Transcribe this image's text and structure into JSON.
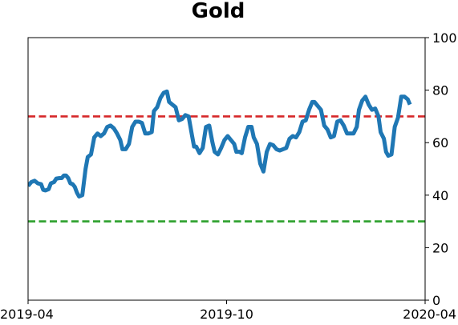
{
  "chart_data": {
    "type": "line",
    "title": "Gold",
    "xlabel": "",
    "ylabel": "",
    "xlim": [
      "2019-04-01",
      "2020-04-01"
    ],
    "ylim": [
      0,
      100
    ],
    "x_ticks": [
      {
        "date": "2019-04-01",
        "label": "2019-04"
      },
      {
        "date": "2019-10-01",
        "label": "2019-10"
      },
      {
        "date": "2020-04-01",
        "label": "2020-04"
      }
    ],
    "y_ticks": [
      0,
      20,
      40,
      60,
      80,
      100
    ],
    "y_axis_side": "right",
    "grid": false,
    "legend": "none",
    "reference_lines": [
      {
        "y": 70,
        "color": "#d62728",
        "style": "dashed"
      },
      {
        "y": 30,
        "color": "#2ca02c",
        "style": "dashed"
      }
    ],
    "series": [
      {
        "color": "#1f77b4",
        "points": [
          [
            "2019-04-01",
            43.5
          ],
          [
            "2019-04-04",
            45
          ],
          [
            "2019-04-07",
            45.5
          ],
          [
            "2019-04-10",
            44.5
          ],
          [
            "2019-04-13",
            44.2
          ],
          [
            "2019-04-15",
            42
          ],
          [
            "2019-04-17",
            41.8
          ],
          [
            "2019-04-20",
            42.3
          ],
          [
            "2019-04-22",
            44.5
          ],
          [
            "2019-04-25",
            45
          ],
          [
            "2019-04-27",
            46.3
          ],
          [
            "2019-04-30",
            46.5
          ],
          [
            "2019-05-02",
            46.5
          ],
          [
            "2019-05-04",
            47.5
          ],
          [
            "2019-05-06",
            47.5
          ],
          [
            "2019-05-08",
            46.5
          ],
          [
            "2019-05-10",
            44.5
          ],
          [
            "2019-05-12",
            44.2
          ],
          [
            "2019-05-14",
            43.2
          ],
          [
            "2019-05-16",
            41
          ],
          [
            "2019-05-18",
            39.5
          ],
          [
            "2019-05-21",
            40
          ],
          [
            "2019-05-24",
            50
          ],
          [
            "2019-05-26",
            54.5
          ],
          [
            "2019-05-29",
            55.5
          ],
          [
            "2019-06-01",
            62
          ],
          [
            "2019-06-04",
            63.5
          ],
          [
            "2019-06-07",
            62.5
          ],
          [
            "2019-06-10",
            63.5
          ],
          [
            "2019-06-13",
            66
          ],
          [
            "2019-06-16",
            66.5
          ],
          [
            "2019-06-19",
            65.5
          ],
          [
            "2019-06-22",
            63.5
          ],
          [
            "2019-06-25",
            61
          ],
          [
            "2019-06-27",
            57.5
          ],
          [
            "2019-06-30",
            57.5
          ],
          [
            "2019-07-03",
            59.5
          ],
          [
            "2019-07-06",
            66
          ],
          [
            "2019-07-09",
            68
          ],
          [
            "2019-07-12",
            68
          ],
          [
            "2019-07-15",
            67.5
          ],
          [
            "2019-07-18",
            63.5
          ],
          [
            "2019-07-21",
            63.5
          ],
          [
            "2019-07-24",
            64
          ],
          [
            "2019-07-26",
            72
          ],
          [
            "2019-07-29",
            73.5
          ],
          [
            "2019-08-01",
            77
          ],
          [
            "2019-08-04",
            79
          ],
          [
            "2019-08-07",
            79.5
          ],
          [
            "2019-08-09",
            75.5
          ],
          [
            "2019-08-12",
            74.5
          ],
          [
            "2019-08-15",
            73.5
          ],
          [
            "2019-08-18",
            68.5
          ],
          [
            "2019-08-21",
            69
          ],
          [
            "2019-08-24",
            70.5
          ],
          [
            "2019-08-27",
            70
          ],
          [
            "2019-08-30",
            63
          ],
          [
            "2019-09-01",
            58.5
          ],
          [
            "2019-09-03",
            58.5
          ],
          [
            "2019-09-06",
            56
          ],
          [
            "2019-09-09",
            58
          ],
          [
            "2019-09-12",
            66
          ],
          [
            "2019-09-15",
            66.5
          ],
          [
            "2019-09-18",
            60
          ],
          [
            "2019-09-20",
            56.5
          ],
          [
            "2019-09-23",
            55.5
          ],
          [
            "2019-09-26",
            58
          ],
          [
            "2019-09-29",
            61
          ],
          [
            "2019-10-02",
            62.5
          ],
          [
            "2019-10-05",
            61
          ],
          [
            "2019-10-08",
            59.5
          ],
          [
            "2019-10-10",
            56.5
          ],
          [
            "2019-10-13",
            56.5
          ],
          [
            "2019-10-15",
            56
          ],
          [
            "2019-10-18",
            62
          ],
          [
            "2019-10-21",
            66
          ],
          [
            "2019-10-24",
            66
          ],
          [
            "2019-10-26",
            62
          ],
          [
            "2019-10-29",
            59.5
          ],
          [
            "2019-11-01",
            52
          ],
          [
            "2019-11-04",
            49
          ],
          [
            "2019-11-07",
            56.5
          ],
          [
            "2019-11-10",
            59.5
          ],
          [
            "2019-11-13",
            59
          ],
          [
            "2019-11-16",
            57.5
          ],
          [
            "2019-11-19",
            57
          ],
          [
            "2019-11-22",
            57.5
          ],
          [
            "2019-11-25",
            58
          ],
          [
            "2019-11-28",
            61.5
          ],
          [
            "2019-12-01",
            62.5
          ],
          [
            "2019-12-04",
            62
          ],
          [
            "2019-12-07",
            64
          ],
          [
            "2019-12-10",
            68
          ],
          [
            "2019-12-13",
            68.5
          ],
          [
            "2019-12-16",
            72.5
          ],
          [
            "2019-12-19",
            75.5
          ],
          [
            "2019-12-21",
            75.5
          ],
          [
            "2019-12-24",
            74
          ],
          [
            "2019-12-27",
            72.5
          ],
          [
            "2019-12-30",
            66.5
          ],
          [
            "2020-01-02",
            65
          ],
          [
            "2020-01-05",
            62
          ],
          [
            "2020-01-08",
            62.5
          ],
          [
            "2020-01-11",
            68
          ],
          [
            "2020-01-14",
            68.5
          ],
          [
            "2020-01-17",
            66.5
          ],
          [
            "2020-01-20",
            63.5
          ],
          [
            "2020-01-23",
            63.5
          ],
          [
            "2020-01-26",
            63.5
          ],
          [
            "2020-01-29",
            66
          ],
          [
            "2020-01-31",
            72.5
          ],
          [
            "2020-02-03",
            76
          ],
          [
            "2020-02-06",
            77.5
          ],
          [
            "2020-02-09",
            74.5
          ],
          [
            "2020-02-12",
            72.5
          ],
          [
            "2020-02-15",
            73
          ],
          [
            "2020-02-18",
            70
          ],
          [
            "2020-02-20",
            64
          ],
          [
            "2020-02-23",
            61.5
          ],
          [
            "2020-02-25",
            56.5
          ],
          [
            "2020-02-27",
            55
          ],
          [
            "2020-03-01",
            55.5
          ],
          [
            "2020-03-04",
            66
          ],
          [
            "2020-03-07",
            69.5
          ],
          [
            "2020-03-10",
            77.5
          ],
          [
            "2020-03-13",
            77.5
          ],
          [
            "2020-03-16",
            76.5
          ],
          [
            "2020-03-18",
            74.5
          ]
        ]
      }
    ]
  }
}
